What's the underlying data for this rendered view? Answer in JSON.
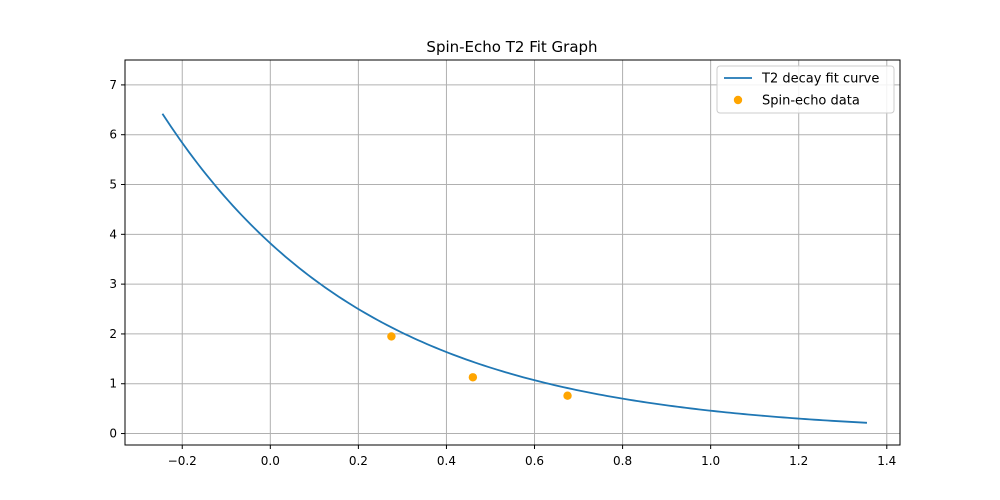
{
  "chart_data": {
    "type": "line",
    "title": "Spin-Echo T2 Fit Graph",
    "xlabel": "",
    "ylabel": "",
    "xlim": [
      -0.33,
      1.43
    ],
    "ylim": [
      -0.23,
      7.5
    ],
    "x_ticks": [
      -0.2,
      0.0,
      0.2,
      0.4,
      0.6,
      0.8,
      1.0,
      1.2,
      1.4
    ],
    "x_tick_labels": [
      "−0.2",
      "0.0",
      "0.2",
      "0.4",
      "0.6",
      "0.8",
      "1.0",
      "1.2",
      "1.4"
    ],
    "y_ticks": [
      0,
      1,
      2,
      3,
      4,
      5,
      6,
      7
    ],
    "y_tick_labels": [
      "0",
      "1",
      "2",
      "3",
      "4",
      "5",
      "6",
      "7"
    ],
    "grid": true,
    "legend_position": "top-right",
    "series": [
      {
        "name": "T2 decay fit curve",
        "kind": "line",
        "color": "#1f77b4",
        "x_range": [
          -0.245,
          1.355
        ],
        "model": {
          "amplitude": 3.82,
          "rate": 2.12
        }
      },
      {
        "name": "Spin-echo data",
        "kind": "scatter",
        "color": "#ffa500",
        "x": [
          0.275,
          0.46,
          0.675
        ],
        "y": [
          1.95,
          1.13,
          0.76
        ]
      }
    ]
  }
}
